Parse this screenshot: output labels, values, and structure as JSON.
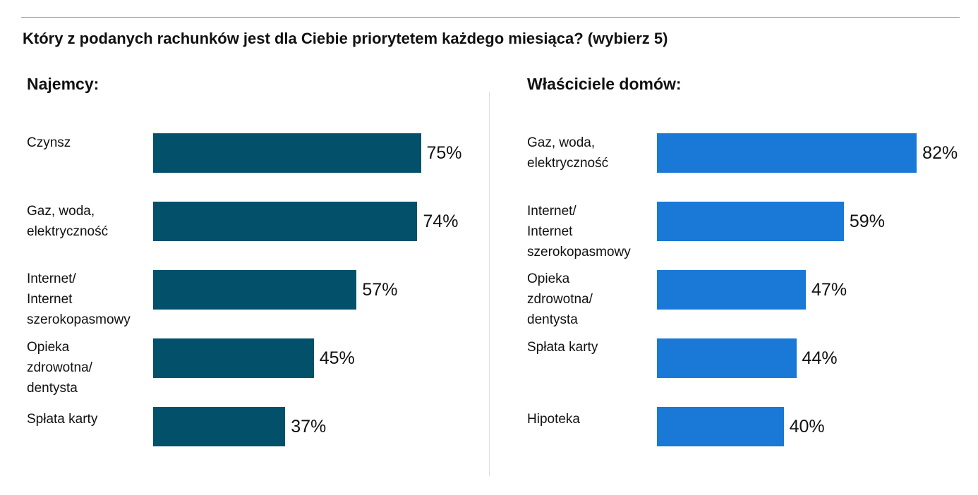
{
  "title": "Który z podanych rachunków jest dla Ciebie priorytetem każdego miesiąca? (wybierz 5)",
  "chart_data": [
    {
      "type": "bar",
      "orientation": "horizontal",
      "title": "Najemcy:",
      "color": "#03506b",
      "categories": [
        "Czynsz",
        "Gaz, woda, elektryczność",
        "Internet/ Internet szerokopasmowy",
        "Opieka zdrowotna/ dentysta",
        "Spłata karty"
      ],
      "display_lines": [
        [
          "Czynsz"
        ],
        [
          "Gaz, woda,",
          "elektryczność"
        ],
        [
          "Internet/",
          "Internet",
          "szerokopasmowy"
        ],
        [
          "Opieka",
          "zdrowotna/",
          "dentysta"
        ],
        [
          "Spłata karty"
        ]
      ],
      "values": [
        75,
        74,
        57,
        45,
        37
      ],
      "value_labels": [
        "75%",
        "74%",
        "57%",
        "45%",
        "37%"
      ],
      "unit": "%"
    },
    {
      "type": "bar",
      "orientation": "horizontal",
      "title": "Właściciele domów:",
      "color": "#1a78d6",
      "categories": [
        "Gaz, woda, elektryczność",
        "Internet/ Internet szerokopasmowy",
        "Opieka zdrowotna/ dentysta",
        "Spłata karty",
        "Hipoteka"
      ],
      "display_lines": [
        [
          "Gaz, woda,",
          "elektryczność"
        ],
        [
          "Internet/",
          "Internet",
          "szerokopasmowy"
        ],
        [
          "Opieka",
          "zdrowotna/",
          "dentysta"
        ],
        [
          "Spłata karty"
        ],
        [
          "Hipoteka"
        ]
      ],
      "values": [
        82,
        59,
        47,
        44,
        40
      ],
      "value_labels": [
        "82%",
        "59%",
        "47%",
        "44%",
        "40%"
      ],
      "unit": "%"
    }
  ]
}
